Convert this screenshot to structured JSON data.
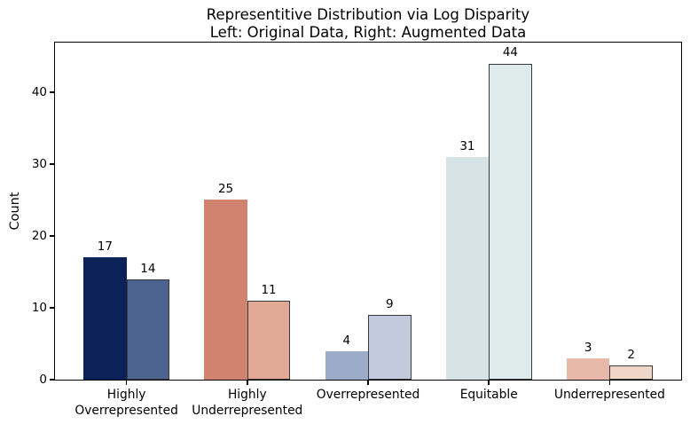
{
  "chart_data": {
    "type": "bar",
    "title": "Representitive Distribution via Log Disparity",
    "subtitle": "Left: Original Data, Right: Augmented Data",
    "xlabel": "",
    "ylabel": "Count",
    "categories": [
      "Highly\nOverrepresented",
      "Highly\nUnderrepresented",
      "Overrepresented",
      "Equitable",
      "Underrepresented"
    ],
    "series": [
      {
        "name": "Original Data",
        "position": "left",
        "values": [
          17,
          25,
          4,
          31,
          3
        ],
        "colors": [
          "#0b2158",
          "#d08470",
          "#9dabca",
          "#d6e4e6",
          "#e8b9a8"
        ],
        "edge": "none"
      },
      {
        "name": "Augmented Data",
        "position": "right",
        "values": [
          14,
          11,
          9,
          44,
          2
        ],
        "colors": [
          "#4d6390",
          "#e1a896",
          "#c3cade",
          "#dfeaeb",
          "#f0d5c9"
        ],
        "edge": "#3a3a3a"
      }
    ],
    "yticks": [
      0,
      10,
      20,
      30,
      40
    ],
    "ylim": [
      0,
      46.9
    ],
    "grid": false,
    "bar_labels": true,
    "legend": "none",
    "background": "#ffffff"
  }
}
